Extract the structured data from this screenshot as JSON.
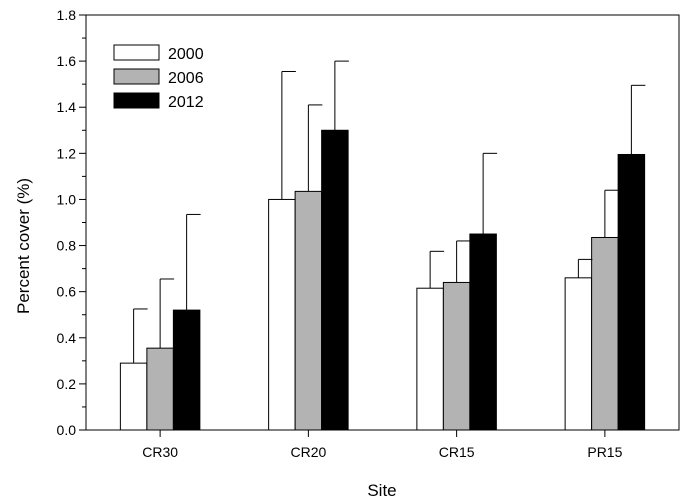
{
  "chart_data": {
    "type": "bar",
    "xlabel": "Site",
    "ylabel": "Percent cover (%)",
    "ylim": [
      0,
      1.8
    ],
    "yticks": [
      "0.0",
      "0.2",
      "0.4",
      "0.6",
      "0.8",
      "1.0",
      "1.2",
      "1.4",
      "1.6",
      "1.8"
    ],
    "categories": [
      "CR30",
      "CR20",
      "CR15",
      "PR15"
    ],
    "series": [
      {
        "name": "2000",
        "color": "#ffffff",
        "values": [
          0.29,
          1.0,
          0.615,
          0.66
        ],
        "errors": [
          0.235,
          0.555,
          0.16,
          0.08
        ]
      },
      {
        "name": "2006",
        "color": "#b3b3b3",
        "values": [
          0.355,
          1.035,
          0.64,
          0.835
        ],
        "errors": [
          0.3,
          0.375,
          0.18,
          0.205
        ]
      },
      {
        "name": "2012",
        "color": "#000000",
        "values": [
          0.52,
          1.3,
          0.85,
          1.195
        ],
        "errors": [
          0.415,
          0.3,
          0.35,
          0.3
        ]
      }
    ],
    "grid": false,
    "legend_position": "top-left"
  }
}
